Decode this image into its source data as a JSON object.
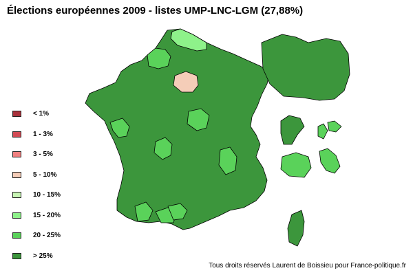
{
  "title": "Élections européennes 2009 - listes UMP-LNC-LGM (27,88%)",
  "credit": "Tous droits réservés Laurent de Boissieu pour France-politique.fr",
  "colors": {
    "c_lt1": "#a8323c",
    "c_1_3": "#d24b55",
    "c_3_5": "#f08080",
    "c_5_10": "#f5cdb8",
    "c_10_15": "#c8f5b4",
    "c_15_20": "#8ef28a",
    "c_20_25": "#5ad25a",
    "c_gt25": "#3c963c"
  },
  "legend": [
    {
      "label": "< 1%",
      "color_key": "c_lt1"
    },
    {
      "label": "1 - 3%",
      "color_key": "c_1_3"
    },
    {
      "label": "3 - 5%",
      "color_key": "c_3_5"
    },
    {
      "label": "5 - 10%",
      "color_key": "c_5_10"
    },
    {
      "label": "10 - 15%",
      "color_key": "c_10_15"
    },
    {
      "label": "15 - 20%",
      "color_key": "c_15_20"
    },
    {
      "label": "20 - 25%",
      "color_key": "c_20_25"
    },
    {
      "label": "> 25%",
      "color_key": "c_gt25"
    }
  ],
  "regions": {
    "metropole": "c_gt25",
    "nord": "c_15_20",
    "seine_maritime": "c_20_25",
    "paris_center": "c_5_10",
    "puy_de_dome": "c_20_25",
    "haute_vienne": "c_20_25",
    "charente_maritime": "c_20_25",
    "loire": "c_20_25",
    "ariege": "c_20_25",
    "aude": "c_20_25",
    "haute_garonne": "c_20_25",
    "idf_outer": "c_gt25",
    "guadeloupe": "c_gt25",
    "martinique": "c_20_25",
    "guyane": "c_gt25",
    "reunion": "c_20_25",
    "mayotte": "c_20_25",
    "corse": "c_gt25"
  }
}
